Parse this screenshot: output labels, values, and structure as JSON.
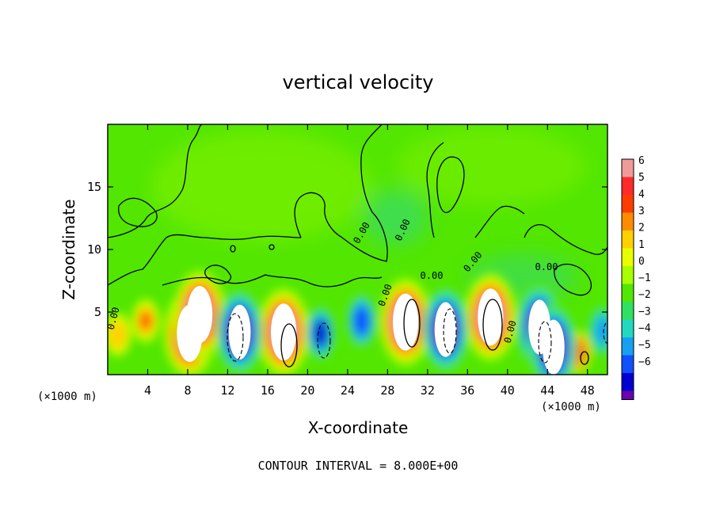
{
  "chart_data": {
    "type": "heatmap",
    "title": "vertical velocity",
    "xlabel": "X-coordinate",
    "ylabel": "Z-coordinate",
    "x_unit_label": "(×1000 m)",
    "x_unit_label_right": "(×1000 m)",
    "xlim": [
      0,
      50
    ],
    "ylim": [
      0,
      20
    ],
    "x_ticks": [
      4,
      8,
      12,
      16,
      20,
      24,
      28,
      32,
      36,
      40,
      44,
      48
    ],
    "y_ticks": [
      5,
      10,
      15
    ],
    "footer": "CONTOUR INTERVAL = 8.000E+00",
    "contour_interval": 8.0,
    "contour_labels": [
      "0.00",
      "0.00",
      "0.00",
      "0.00",
      "0.00",
      "0.00",
      "0.00",
      "0.00"
    ],
    "colorbar": {
      "min": -6,
      "max": 6,
      "ticks": [
        6,
        5,
        4,
        3,
        2,
        1,
        0,
        -1,
        -2,
        -3,
        -4,
        -5,
        -6
      ],
      "ticks_text": [
        "6",
        "5",
        "4",
        "3",
        "2",
        "1",
        "0",
        "−1",
        "−2",
        "−3",
        "−4",
        "−5",
        "−6"
      ],
      "colors": [
        "#f29a9a",
        "#ff2a2a",
        "#ff3c00",
        "#ff8c00",
        "#ffd000",
        "#e8ff00",
        "#a8ff00",
        "#52e600",
        "#30e060",
        "#20d8c0",
        "#18a0f0",
        "#1050ff",
        "#0000d0",
        "#6a00b0"
      ]
    },
    "updrafts": [
      {
        "x": 1.0,
        "z": 3.2,
        "value": 2.0
      },
      {
        "x": 3.8,
        "z": 4.3,
        "value": 3.5
      },
      {
        "x": 8.2,
        "z": 3.3,
        "value": 6.0
      },
      {
        "x": 9.2,
        "z": 4.8,
        "value": 6.0
      },
      {
        "x": 17.6,
        "z": 3.4,
        "value": 6.0
      },
      {
        "x": 29.8,
        "z": 4.2,
        "value": 6.0
      },
      {
        "x": 38.3,
        "z": 4.6,
        "value": 6.0
      },
      {
        "x": 47.0,
        "z": 1.8,
        "value": 4.0
      }
    ],
    "downdrafts": [
      {
        "x": 13.2,
        "z": 3.4,
        "value": -6.0
      },
      {
        "x": 21.3,
        "z": 3.3,
        "value": -5.0
      },
      {
        "x": 25.4,
        "z": 4.3,
        "value": -4.0
      },
      {
        "x": 33.8,
        "z": 3.6,
        "value": -6.0
      },
      {
        "x": 43.2,
        "z": 3.8,
        "value": -6.0
      },
      {
        "x": 44.6,
        "z": 2.2,
        "value": -6.0
      },
      {
        "x": 49.5,
        "z": 3.5,
        "value": -3.0
      }
    ]
  }
}
